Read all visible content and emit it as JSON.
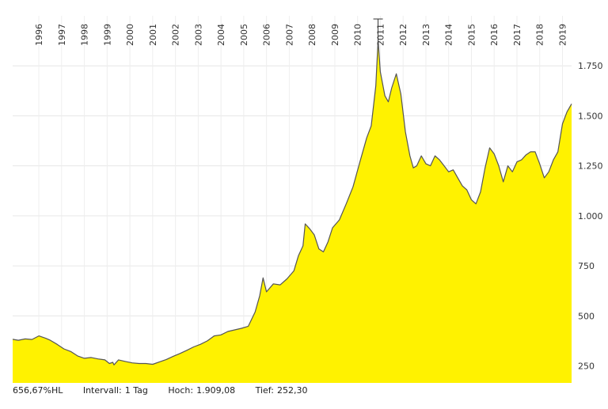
{
  "chart_data": {
    "type": "area",
    "title": "",
    "x_ticks": [
      "1996",
      "1997",
      "1998",
      "1999",
      "2000",
      "2001",
      "2002",
      "2003",
      "2004",
      "2005",
      "2006",
      "2007",
      "2008",
      "2009",
      "2010",
      "2011",
      "2012",
      "2013",
      "2014",
      "2015",
      "2016",
      "2017",
      "2018",
      "2019"
    ],
    "y_ticks": [
      "250",
      "500",
      "750",
      "1.000",
      "1.250",
      "1.500",
      "1.750"
    ],
    "y_tick_values": [
      250,
      500,
      750,
      1000,
      1250,
      1500,
      1750
    ],
    "ylim": [
      165,
      2000
    ],
    "xlim": [
      1995.35,
      2019.9
    ],
    "grid": true,
    "fill_color": "#fff200",
    "line_color": "#555555",
    "series": [
      {
        "x": [
          1995.35,
          1995.6,
          1995.9,
          1996.2,
          1996.5,
          1996.8,
          1997.0,
          1997.3,
          1997.6,
          1997.9,
          1998.2,
          1998.5,
          1998.8,
          1999.1,
          1999.4,
          1999.6,
          1999.75,
          1999.8,
          2000.0,
          2000.3,
          2000.6,
          2000.9,
          2001.2,
          2001.5,
          2001.8,
          2002.1,
          2002.4,
          2002.7,
          2003.0,
          2003.3,
          2003.6,
          2003.9,
          2004.2,
          2004.5,
          2004.8,
          2005.1,
          2005.4,
          2005.7,
          2006.0,
          2006.2,
          2006.35,
          2006.5,
          2006.8,
          2007.1,
          2007.4,
          2007.7,
          2007.9,
          2008.1,
          2008.2,
          2008.4,
          2008.6,
          2008.8,
          2009.0,
          2009.2,
          2009.4,
          2009.7,
          2010.0,
          2010.3,
          2010.6,
          2010.9,
          2011.1,
          2011.3,
          2011.4,
          2011.5,
          2011.7,
          2011.85,
          2012.0,
          2012.2,
          2012.4,
          2012.6,
          2012.8,
          2012.95,
          2013.1,
          2013.3,
          2013.5,
          2013.7,
          2013.9,
          2014.1,
          2014.3,
          2014.5,
          2014.7,
          2014.9,
          2015.1,
          2015.3,
          2015.5,
          2015.7,
          2015.9,
          2016.1,
          2016.3,
          2016.5,
          2016.7,
          2016.9,
          2017.1,
          2017.3,
          2017.5,
          2017.7,
          2017.9,
          2018.1,
          2018.3,
          2018.5,
          2018.7,
          2018.9,
          2019.1,
          2019.3,
          2019.5,
          2019.7,
          2019.9
        ],
        "values": [
          383,
          378,
          385,
          382,
          400,
          388,
          378,
          358,
          335,
          322,
          300,
          288,
          292,
          285,
          280,
          262,
          268,
          255,
          280,
          272,
          265,
          262,
          262,
          258,
          270,
          282,
          298,
          312,
          328,
          345,
          358,
          375,
          400,
          405,
          422,
          430,
          438,
          448,
          520,
          600,
          690,
          620,
          660,
          655,
          685,
          725,
          800,
          850,
          960,
          935,
          905,
          835,
          820,
          870,
          940,
          980,
          1060,
          1145,
          1270,
          1390,
          1450,
          1650,
          1880,
          1720,
          1600,
          1570,
          1640,
          1710,
          1610,
          1420,
          1300,
          1240,
          1250,
          1300,
          1260,
          1250,
          1300,
          1280,
          1250,
          1220,
          1230,
          1190,
          1150,
          1130,
          1080,
          1060,
          1120,
          1240,
          1340,
          1310,
          1250,
          1170,
          1250,
          1220,
          1270,
          1280,
          1305,
          1320,
          1320,
          1260,
          1190,
          1220,
          1280,
          1320,
          1460,
          1520,
          1560
        ]
      }
    ]
  },
  "footer": {
    "performance": "656,67%HL",
    "interval_label": "Intervall:",
    "interval_value": "1 Tag",
    "high_label": "Hoch:",
    "high_value": "1.909,08",
    "low_label": "Tief:",
    "low_value": "252,30"
  }
}
